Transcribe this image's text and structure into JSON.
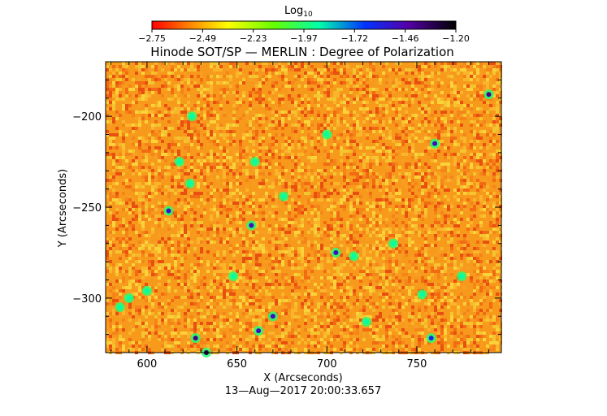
{
  "chart_data": {
    "type": "heatmap",
    "title": "Hinode SOT/SP — MERLIN : Degree of Polarization",
    "xlabel": "X (Arcseconds)",
    "ylabel": "Y (Arcseconds)",
    "timestamp": "13—Aug—2017 20:00:33.657",
    "colorbar": {
      "label": "Log",
      "label_sub": "10",
      "ticks": [
        "−2.75",
        "−2.49",
        "−2.23",
        "−1.97",
        "−1.72",
        "−1.46",
        "−1.20"
      ],
      "range": [
        -2.75,
        -1.2
      ],
      "colormap": "rainbow (red → orange → yellow → green → cyan → blue → violet → black)"
    },
    "xlim": [
      577,
      797
    ],
    "ylim": [
      -330,
      -170
    ],
    "xticks": [
      600,
      650,
      700,
      750
    ],
    "xtick_labels": [
      "600",
      "650",
      "700",
      "750"
    ],
    "yticks": [
      -200,
      -250,
      -300
    ],
    "ytick_labels": [
      "−200",
      "−250",
      "−300"
    ],
    "dominant_value": "approx. −2.6 to −2.5 (orange)",
    "features": [
      {
        "x": 760,
        "y": -215,
        "value": -1.5
      },
      {
        "x": 715,
        "y": -277,
        "value": -1.9
      },
      {
        "x": 722,
        "y": -313,
        "value": -1.9
      },
      {
        "x": 705,
        "y": -275,
        "value": -1.5
      },
      {
        "x": 612,
        "y": -252,
        "value": -1.5
      },
      {
        "x": 627,
        "y": -322,
        "value": -1.4
      },
      {
        "x": 633,
        "y": -330,
        "value": -1.3
      },
      {
        "x": 662,
        "y": -318,
        "value": -1.5
      },
      {
        "x": 670,
        "y": -310,
        "value": -1.5
      },
      {
        "x": 658,
        "y": -260,
        "value": -1.5
      },
      {
        "x": 618,
        "y": -225,
        "value": -1.9
      },
      {
        "x": 624,
        "y": -237,
        "value": -1.9
      },
      {
        "x": 660,
        "y": -225,
        "value": -1.9
      },
      {
        "x": 753,
        "y": -298,
        "value": -1.9
      },
      {
        "x": 758,
        "y": -322,
        "value": -1.6
      },
      {
        "x": 790,
        "y": -188,
        "value": -1.4
      },
      {
        "x": 585,
        "y": -305,
        "value": -1.9
      },
      {
        "x": 590,
        "y": -300,
        "value": -1.9
      },
      {
        "x": 600,
        "y": -296,
        "value": -1.9
      },
      {
        "x": 648,
        "y": -288,
        "value": -1.9
      },
      {
        "x": 775,
        "y": -288,
        "value": -1.9
      },
      {
        "x": 625,
        "y": -200,
        "value": -1.9
      },
      {
        "x": 737,
        "y": -270,
        "value": -1.9
      },
      {
        "x": 700,
        "y": -210,
        "value": -1.9
      },
      {
        "x": 676,
        "y": -244,
        "value": -1.9
      }
    ]
  }
}
